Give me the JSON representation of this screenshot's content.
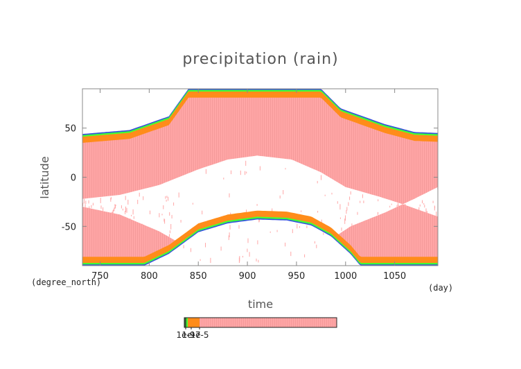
{
  "chart_data": {
    "type": "heatmap",
    "title": "precipitation (rain)",
    "xlabel": "time",
    "ylabel": "latitude",
    "x_unit": "(day)",
    "y_unit": "(degree_north)",
    "xlim": [
      732,
      1094
    ],
    "ylim": [
      -90,
      90
    ],
    "x_ticks": [
      750,
      800,
      850,
      900,
      950,
      1000,
      1050
    ],
    "y_ticks": [
      -50,
      0,
      50
    ],
    "grid": false,
    "colors": {
      "rain": "#ffa6a6",
      "orange": "#ff8c1a",
      "green": "#44ff33",
      "teal": "#2ec4a0",
      "blue": "#3355dd",
      "frame": "#888888"
    },
    "bands": {
      "north_edge_lat": [
        [
          732,
          44
        ],
        [
          780,
          48
        ],
        [
          820,
          62
        ],
        [
          840,
          90
        ],
        [
          975,
          90
        ],
        [
          995,
          70
        ],
        [
          1040,
          54
        ],
        [
          1070,
          46
        ],
        [
          1094,
          45
        ]
      ],
      "south_edge_lat": [
        [
          795,
          -90
        ],
        [
          820,
          -78
        ],
        [
          850,
          -56
        ],
        [
          880,
          -47
        ],
        [
          910,
          -43
        ],
        [
          940,
          -44
        ],
        [
          965,
          -49
        ],
        [
          985,
          -60
        ],
        [
          1005,
          -78
        ],
        [
          1015,
          -90
        ]
      ],
      "dry_upper_lat": [
        [
          732,
          -22
        ],
        [
          770,
          -18
        ],
        [
          810,
          -8
        ],
        [
          850,
          8
        ],
        [
          880,
          18
        ],
        [
          910,
          22
        ],
        [
          945,
          18
        ],
        [
          975,
          5
        ],
        [
          1000,
          -10
        ],
        [
          1035,
          -20
        ],
        [
          1060,
          -28
        ],
        [
          1094,
          -40
        ]
      ],
      "dry_lower_lat": [
        [
          732,
          -30
        ],
        [
          770,
          -38
        ],
        [
          810,
          -55
        ],
        [
          840,
          -72
        ],
        [
          855,
          -90
        ],
        [
          955,
          -90
        ],
        [
          975,
          -70
        ],
        [
          1005,
          -50
        ],
        [
          1040,
          -36
        ],
        [
          1070,
          -22
        ],
        [
          1094,
          -10
        ]
      ]
    },
    "colorbar": {
      "tick_labels": [
        "1e-9",
        "1e-7",
        "1e-5"
      ]
    }
  }
}
